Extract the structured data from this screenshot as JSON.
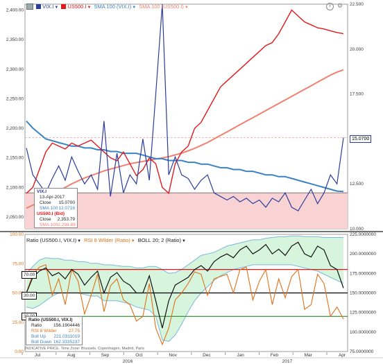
{
  "upper_legend": {
    "vix": "VIX.I",
    "us500": "US500.I",
    "sma_vix": "SMA 100 (VIX.I)",
    "sma_us500": "SMA 100 (US500.I)"
  },
  "lower_legend": {
    "ratio": "Ratio (US500.I, VIX.I)",
    "rsi": "RSI 8 Wilder (Ratio)",
    "boll": "BOLL 20; 2 (Ratio)"
  },
  "upper_tooltip": {
    "title": "VIX.I",
    "date": "13-Apr-2017",
    "close_label": "Close",
    "close_value": "15.0700",
    "sma_label": "SMA 100",
    "sma_value": "12.0716",
    "sub_title": "US500.I (Bid)",
    "close2_label": "Close",
    "close2_value": "2,353.79",
    "sma2_label": "SMA 100",
    "sma2_value": "2,298.89"
  },
  "lower_tooltip": {
    "title": "Ratio (US500.I, VIX.I)",
    "ratio_label": "Ratio",
    "ratio_value": "156.1904446",
    "rsi_label": "RSI 8 Wilder",
    "rsi_value": "27.75",
    "up_label": "Boll Up",
    "up_value": "221.0311019",
    "down_label": "Boll Down",
    "down_value": "162.3335237"
  },
  "current_value": "15.0700",
  "level_labels": [
    "70.00",
    "30.00",
    "30.00"
  ],
  "footer_note": "INDICATIVE PRICE. Time Zone: Brussels, Copenhagen, Madrid, Paris",
  "colors": {
    "vix": "#2a3c9c",
    "us500": "#e0191b",
    "sma_vix": "#3a82c4",
    "sma_us500": "#f08070",
    "ratio": "#111111",
    "rsi": "#e07018",
    "boll": "#7ab8dc",
    "band_fill": "#d6f5dc",
    "zone_fill": "#f9d3d3"
  },
  "chart_data": [
    {
      "type": "line",
      "axes": {
        "left_ticks": [
          "2,400.00",
          "2,350.00",
          "2,300.00",
          "2,250.00",
          "2,200.00",
          "2,150.00",
          "2,100.00",
          "2,050.00"
        ],
        "right_ticks": [
          "22.500",
          "20.000",
          "17.500",
          "15.000",
          "12.500",
          "10.000"
        ],
        "ylim_left": [
          2030,
          2410
        ],
        "ylim_right": [
          10,
          22.5
        ]
      },
      "series": [
        {
          "name": "US500.I",
          "axis": "left",
          "values": [
            2090,
            2100,
            2130,
            2160,
            2175,
            2170,
            2165,
            2175,
            2170,
            2175,
            2180,
            2170,
            2160,
            2150,
            2145,
            2160,
            2140,
            2120,
            2130,
            2150,
            2140,
            2100,
            2090,
            2140,
            2160,
            2170,
            2200,
            2210,
            2230,
            2250,
            2270,
            2280,
            2290,
            2300,
            2310,
            2320,
            2330,
            2340,
            2345,
            2360,
            2380,
            2400,
            2390,
            2380,
            2375,
            2370,
            2368,
            2365,
            2362,
            2360
          ]
        },
        {
          "name": "VIX.I",
          "axis": "right",
          "values": [
            14.5,
            13.0,
            12.5,
            12.0,
            12.8,
            13.5,
            12.7,
            14.0,
            13.2,
            12.5,
            13.0,
            12.2,
            16.0,
            11.8,
            14.2,
            12.0,
            13.0,
            12.5,
            15.0,
            12.7,
            17.5,
            22.5,
            13.0,
            14.0,
            13.0,
            12.8,
            12.2,
            12.7,
            13.0,
            12.0,
            11.8,
            11.6,
            11.8,
            11.5,
            11.7,
            11.4,
            11.6,
            11.2,
            11.7,
            11.5,
            12.0,
            11.2,
            11.0,
            11.6,
            12.2,
            11.4,
            12.0,
            13.0,
            12.5,
            15.07
          ]
        },
        {
          "name": "SMA 100 (VIX.I)",
          "axis": "right",
          "values": [
            16.0,
            15.6,
            15.3,
            15.0,
            14.9,
            14.8,
            14.7,
            14.6,
            14.6,
            14.5,
            14.5,
            14.4,
            14.4,
            14.3,
            14.3,
            14.2,
            14.2,
            14.2,
            14.1,
            14.0,
            13.9,
            13.9,
            13.8,
            13.8,
            13.8,
            13.7,
            13.7,
            13.6,
            13.6,
            13.5,
            13.4,
            13.4,
            13.3,
            13.3,
            13.2,
            13.2,
            13.1,
            13.0,
            13.0,
            12.9,
            12.9,
            12.8,
            12.7,
            12.6,
            12.5,
            12.4,
            12.3,
            12.2,
            12.1,
            12.07
          ]
        },
        {
          "name": "SMA 100 (US500.I)",
          "axis": "left",
          "values": [
            2065,
            2070,
            2076,
            2082,
            2088,
            2094,
            2100,
            2106,
            2111,
            2116,
            2120,
            2124,
            2128,
            2131,
            2134,
            2137,
            2140,
            2142,
            2144,
            2146,
            2148,
            2150,
            2152,
            2155,
            2158,
            2162,
            2166,
            2171,
            2176,
            2182,
            2188,
            2194,
            2200,
            2206,
            2212,
            2218,
            2224,
            2230,
            2236,
            2242,
            2248,
            2254,
            2260,
            2266,
            2272,
            2278,
            2284,
            2290,
            2295,
            2298.89
          ]
        }
      ]
    },
    {
      "type": "line",
      "axes": {
        "left_ticks": [
          "100.00",
          "75.00",
          "50.00",
          "25.00",
          "0.00"
        ],
        "right_ticks": [
          "225.0000000",
          "200.0000000",
          "175.0000000",
          "150.0000000",
          "125.0000000",
          "100.0000000",
          "75.0000000"
        ],
        "ylim_left": [
          0,
          100
        ],
        "ylim_right": [
          75,
          225
        ],
        "x_months": [
          "Jul",
          "Aug",
          "Sep",
          "Oct",
          "Nov",
          "Dec",
          "Jan",
          "Feb",
          "Mar",
          "Apr"
        ],
        "x_years": [
          "2016",
          "2017"
        ]
      },
      "levels": [
        70,
        30
      ],
      "series": [
        {
          "name": "Ratio (US500.I, VIX.I)",
          "axis": "right",
          "values": [
            150,
            170,
            178,
            182,
            172,
            176,
            168,
            180,
            174,
            160,
            170,
            178,
            150,
            170,
            176,
            165,
            160,
            150,
            150,
            172,
            140,
            105,
            140,
            160,
            165,
            170,
            180,
            185,
            178,
            190,
            196,
            200,
            195,
            205,
            210,
            200,
            205,
            212,
            200,
            206,
            198,
            210,
            215,
            200,
            196,
            210,
            205,
            185,
            180,
            156.19
          ]
        },
        {
          "name": "RSI 8 Wilder (Ratio)",
          "axis": "left",
          "values": [
            50,
            66,
            72,
            74,
            48,
            62,
            40,
            70,
            60,
            32,
            48,
            66,
            34,
            56,
            62,
            44,
            40,
            26,
            30,
            58,
            20,
            6,
            20,
            44,
            50,
            58,
            68,
            66,
            48,
            62,
            64,
            66,
            50,
            70,
            72,
            44,
            60,
            70,
            40,
            62,
            46,
            64,
            70,
            36,
            40,
            66,
            58,
            30,
            38,
            27.75
          ]
        },
        {
          "name": "Boll Up",
          "axis": "right",
          "values": [
            175,
            184,
            192,
            195,
            194,
            194,
            192,
            192,
            190,
            190,
            188,
            188,
            186,
            186,
            185,
            184,
            184,
            182,
            182,
            184,
            184,
            180,
            175,
            176,
            180,
            186,
            192,
            198,
            200,
            202,
            206,
            210,
            212,
            214,
            216,
            218,
            218,
            220,
            221,
            222,
            222,
            223,
            223,
            222,
            222,
            222,
            221,
            221,
            221,
            221.03
          ]
        },
        {
          "name": "Boll Down",
          "axis": "right",
          "values": [
            132,
            130,
            134,
            140,
            146,
            150,
            150,
            150,
            150,
            148,
            146,
            146,
            140,
            140,
            140,
            138,
            136,
            132,
            130,
            128,
            120,
            90,
            88,
            96,
            110,
            126,
            140,
            150,
            158,
            166,
            172,
            176,
            180,
            182,
            184,
            186,
            186,
            186,
            186,
            186,
            186,
            186,
            184,
            182,
            180,
            178,
            174,
            170,
            166,
            162.33
          ]
        }
      ]
    }
  ]
}
